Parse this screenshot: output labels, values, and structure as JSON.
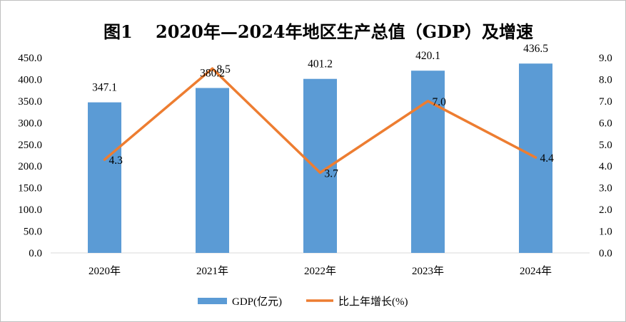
{
  "chart_data": {
    "type": "bar",
    "title": "图1　 2020年—2024年地区生产总值（GDP）及增速",
    "categories": [
      "2020年",
      "2021年",
      "2022年",
      "2023年",
      "2024年"
    ],
    "series": [
      {
        "name": "GDP(亿元)",
        "type": "bar",
        "axis": "left",
        "color": "#5b9bd5",
        "values": [
          347.1,
          380.2,
          401.2,
          420.1,
          436.5
        ],
        "labels": [
          "347.1",
          "380.2",
          "401.2",
          "420.1",
          "436.5"
        ]
      },
      {
        "name": "比上年增长(%)",
        "type": "line",
        "axis": "right",
        "color": "#ed7d31",
        "values": [
          4.3,
          8.5,
          3.7,
          7.0,
          4.4
        ],
        "labels": [
          "4.3",
          "8.5",
          "3.7",
          "7.0",
          "4.4"
        ]
      }
    ],
    "y_left": {
      "min": 0,
      "max": 450,
      "step": 50,
      "ticks": [
        "0.0",
        "50.0",
        "100.0",
        "150.0",
        "200.0",
        "250.0",
        "300.0",
        "350.0",
        "400.0",
        "450.0"
      ]
    },
    "y_right": {
      "min": 0,
      "max": 9,
      "step": 1,
      "ticks": [
        "0.0",
        "1.0",
        "2.0",
        "3.0",
        "4.0",
        "5.0",
        "6.0",
        "7.0",
        "8.0",
        "9.0"
      ]
    },
    "grid": false,
    "legend": "bottom"
  }
}
